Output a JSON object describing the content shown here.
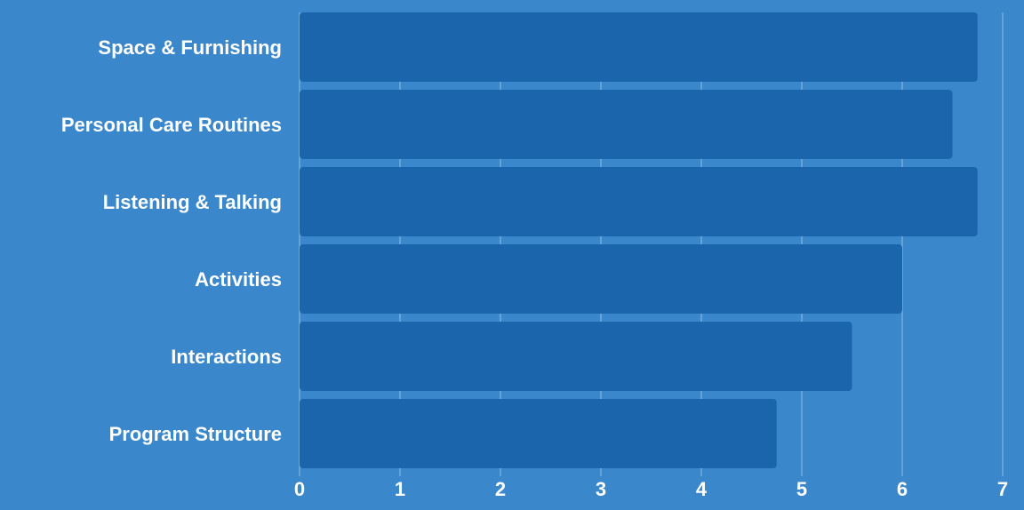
{
  "chart_data": {
    "type": "bar",
    "orientation": "horizontal",
    "categories": [
      "Space & Furnishing",
      "Personal Care Routines",
      "Listening & Talking",
      "Activities",
      "Interactions",
      "Program Structure"
    ],
    "values": [
      6.75,
      6.5,
      6.75,
      6.0,
      5.5,
      4.75
    ],
    "xlim": [
      0,
      7
    ],
    "xticks": [
      "0",
      "1",
      "2",
      "3",
      "4",
      "5",
      "6",
      "7"
    ],
    "grid": true,
    "title": "",
    "xlabel": "",
    "ylabel": "",
    "colors": {
      "background": "#3a87cc",
      "bar": "#1a65ac",
      "grid": "#8fbde6",
      "text": "#ffffff"
    }
  }
}
